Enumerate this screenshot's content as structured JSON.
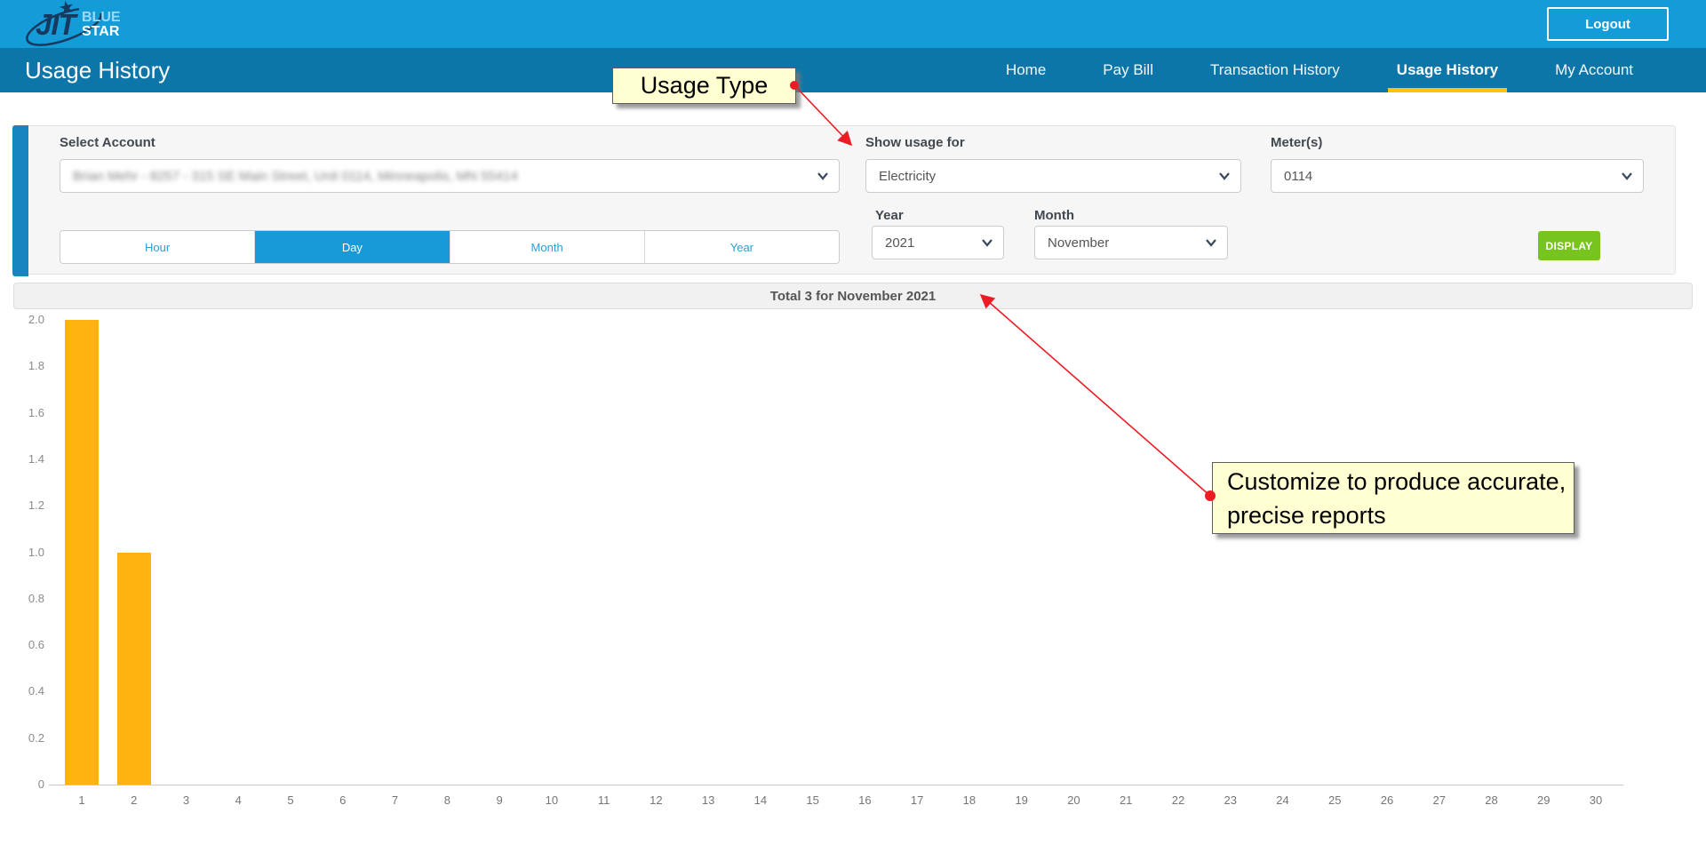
{
  "header": {
    "logo": {
      "jit": "JIT",
      "blue": "BLUE",
      "star": "STAR"
    },
    "logout_label": "Logout"
  },
  "nav": {
    "page_title": "Usage History",
    "items": [
      {
        "label": "Home",
        "active": false
      },
      {
        "label": "Pay Bill",
        "active": false
      },
      {
        "label": "Transaction History",
        "active": false
      },
      {
        "label": "Usage History",
        "active": true
      },
      {
        "label": "My Account",
        "active": false
      }
    ]
  },
  "filters": {
    "select_account": {
      "label": "Select Account",
      "value": "Brian Mehr - 8257 - 315 SE Main Street, Unit 0114, Minneapolis, MN 55414"
    },
    "show_usage_for": {
      "label": "Show usage for",
      "value": "Electricity"
    },
    "meters": {
      "label": "Meter(s)",
      "value": "0114"
    },
    "interval_buttons": [
      {
        "label": "Hour",
        "active": false
      },
      {
        "label": "Day",
        "active": true
      },
      {
        "label": "Month",
        "active": false
      },
      {
        "label": "Year",
        "active": false
      }
    ],
    "year": {
      "label": "Year",
      "value": "2021"
    },
    "month": {
      "label": "Month",
      "value": "November"
    },
    "display_button_label": "DISPLAY"
  },
  "summary": {
    "total_text": "Total 3 for November 2021"
  },
  "chart_data": {
    "type": "bar",
    "title": "Total 3 for November 2021",
    "categories": [
      "1",
      "2",
      "3",
      "4",
      "5",
      "6",
      "7",
      "8",
      "9",
      "10",
      "11",
      "12",
      "13",
      "14",
      "15",
      "16",
      "17",
      "18",
      "19",
      "20",
      "21",
      "22",
      "23",
      "24",
      "25",
      "26",
      "27",
      "28",
      "29",
      "30"
    ],
    "values": [
      2,
      1,
      0,
      0,
      0,
      0,
      0,
      0,
      0,
      0,
      0,
      0,
      0,
      0,
      0,
      0,
      0,
      0,
      0,
      0,
      0,
      0,
      0,
      0,
      0,
      0,
      0,
      0,
      0,
      0
    ],
    "xlabel": "",
    "ylabel": "",
    "ylim": [
      0,
      2
    ],
    "ytick_step": 0.2,
    "yticks": [
      "0",
      "0.2",
      "0.4",
      "0.6",
      "0.8",
      "1.0",
      "1.2",
      "1.4",
      "1.6",
      "1.8",
      "2.0"
    ],
    "grid": false,
    "legend": "none",
    "bar_color": "#FFB310"
  },
  "annotations": {
    "usage_type": {
      "text": "Usage Type"
    },
    "customize": {
      "text": "Customize to produce accurate, precise reports"
    }
  },
  "colors": {
    "topbar_blue": "#149CD8",
    "navbar_blue": "#0D76A8",
    "active_tab_underline": "#FFC20A",
    "active_segment_blue": "#189AD8",
    "display_green": "#76C41D",
    "bar_orange": "#FFB310",
    "callout_yellow": "#FFFFD2",
    "arrow_red": "#EC1C24",
    "accent_bar_blue": "#1786BE"
  }
}
